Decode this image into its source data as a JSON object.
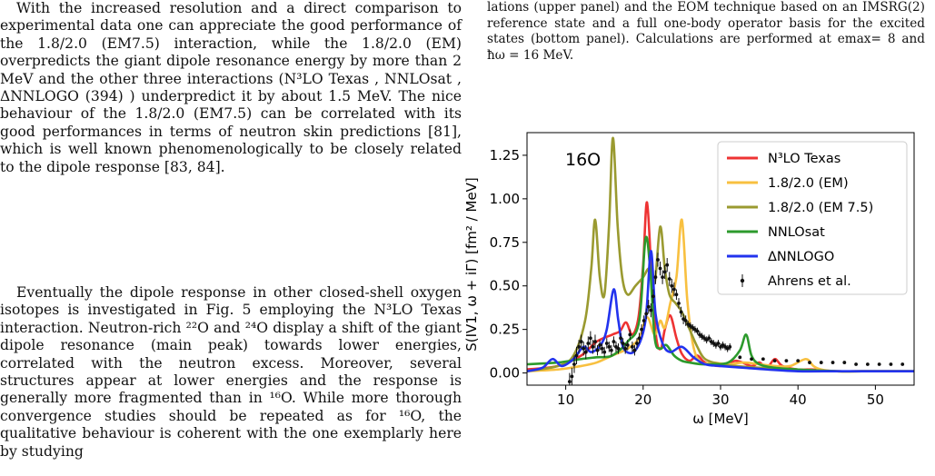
{
  "text": {
    "para1": "With the increased resolution and a direct comparison to experimental data one can appreciate the good performance of the 1.8/2.0 (EM7.5) interaction, while the 1.8/2.0 (EM) overpredicts the giant dipole resonance energy by more than 2 MeV and the other three interactions (N³LO Texas , NNLOsat , ΔNNLOGO (394) ) underpredict it by about 1.5 MeV. The nice behaviour of the 1.8/2.0 (EM7.5) can be correlated with its good performances in terms of neutron skin predictions [81], which is well known phenomenologically to be closely related to the dipole response [83, 84].",
    "para2": "Eventually the dipole response in other closed-shell oxygen isotopes is investigated in Fig. 5 employing the N³LO Texas interaction. Neutron-rich ²²O and ²⁴O display a shift of the giant dipole resonance (main peak) towards lower energies, correlated with the neutron excess. Moreover, several structures appear at lower energies and the response is generally more fragmented than in ¹⁶O. While more thorough convergence studies should be repeated as for ¹⁶O, the qualitative behaviour is coherent with the one exemplarly here by studying",
    "caption": "lations (upper panel) and the EOM technique based on an IMSRG(2) reference state and a full one-body operator basis for the excited states (bottom panel). Calculations are performed at emax= 8 and ħω = 16 MeV."
  },
  "colors": {
    "n3lo": "#ee3333",
    "em": "#f8c040",
    "em75": "#9a9a30",
    "nnlo": "#2c9a2c",
    "dnnlo": "#2233ee",
    "data": "#111111"
  },
  "chart_data": {
    "type": "line",
    "annotation": "16O",
    "xlabel": "ω   [MeV]",
    "ylabel": "S(IV1, ω + iΓ)   [fm² / MeV]",
    "xlim": [
      5,
      55
    ],
    "ylim": [
      -0.07,
      1.38
    ],
    "xticks": [
      10,
      20,
      30,
      40,
      50
    ],
    "yticks": [
      0.0,
      0.25,
      0.5,
      0.75,
      1.0,
      1.25
    ],
    "legend_position": "top-right",
    "grid": false,
    "series": [
      {
        "name": "N³LO Texas",
        "color_key": "n3lo",
        "x": [
          5,
          9,
          12,
          14,
          16,
          17,
          17.8,
          18.6,
          19.4,
          20,
          20.5,
          21.1,
          21.7,
          22.3,
          22.8,
          23.5,
          24.3,
          25,
          26,
          27,
          28,
          30,
          32,
          34,
          35,
          36,
          37,
          38,
          40,
          42,
          45,
          50,
          55
        ],
        "y": [
          0.02,
          0.04,
          0.1,
          0.18,
          0.22,
          0.24,
          0.29,
          0.22,
          0.32,
          0.62,
          0.98,
          0.55,
          0.2,
          0.14,
          0.25,
          0.33,
          0.2,
          0.11,
          0.07,
          0.1,
          0.06,
          0.04,
          0.07,
          0.04,
          0.06,
          0.03,
          0.08,
          0.04,
          0.02,
          0.02,
          0.01,
          0.01,
          0.01
        ]
      },
      {
        "name": "1.8/2.0 (EM)",
        "color_key": "em",
        "x": [
          5,
          9,
          12,
          14,
          16,
          18,
          19.5,
          20.5,
          21.5,
          22.2,
          22.8,
          23.5,
          24.3,
          25,
          25.7,
          26.5,
          27.5,
          29,
          31,
          33,
          35,
          37,
          39,
          41,
          42,
          43,
          45,
          50,
          55
        ],
        "y": [
          0.01,
          0.02,
          0.04,
          0.06,
          0.1,
          0.14,
          0.2,
          0.32,
          0.22,
          0.3,
          0.26,
          0.4,
          0.55,
          0.88,
          0.42,
          0.15,
          0.06,
          0.06,
          0.05,
          0.06,
          0.05,
          0.04,
          0.04,
          0.08,
          0.04,
          0.02,
          0.01,
          0.01,
          0.01
        ]
      },
      {
        "name": "1.8/2.0 (EM 7.5)",
        "color_key": "em75",
        "x": [
          5,
          9,
          11,
          12.5,
          13.3,
          13.8,
          14.4,
          15,
          15.6,
          16.1,
          16.7,
          17.3,
          18,
          19,
          20,
          20.8,
          21.5,
          22.2,
          22.8,
          23.4,
          24.2,
          25,
          26,
          27,
          28,
          30,
          32,
          35,
          40,
          45,
          50,
          55
        ],
        "y": [
          0.01,
          0.04,
          0.1,
          0.3,
          0.6,
          0.88,
          0.55,
          0.45,
          0.85,
          1.35,
          0.85,
          0.55,
          0.45,
          0.5,
          0.55,
          0.6,
          0.52,
          0.84,
          0.6,
          0.45,
          0.4,
          0.35,
          0.25,
          0.15,
          0.08,
          0.05,
          0.04,
          0.03,
          0.02,
          0.01,
          0.01,
          0.01
        ]
      },
      {
        "name": "NNLOsat",
        "color_key": "nnlo",
        "x": [
          5,
          9,
          12,
          14,
          16,
          18,
          19.5,
          20.3,
          20.9,
          21.5,
          22.2,
          23,
          24,
          25,
          26,
          27.5,
          29,
          31,
          32.5,
          33.3,
          34,
          35,
          37,
          40,
          45,
          50,
          55
        ],
        "y": [
          0.05,
          0.06,
          0.08,
          0.09,
          0.1,
          0.18,
          0.3,
          0.77,
          0.6,
          0.2,
          0.14,
          0.16,
          0.1,
          0.07,
          0.06,
          0.05,
          0.05,
          0.06,
          0.13,
          0.22,
          0.1,
          0.05,
          0.03,
          0.02,
          0.01,
          0.01,
          0.01
        ]
      },
      {
        "name": "ΔNNLOGO",
        "color_key": "dnnlo",
        "x": [
          5,
          7,
          8.3,
          9.5,
          11,
          12.3,
          13.3,
          14.5,
          15.3,
          16.2,
          16.8,
          17.5,
          19,
          20.3,
          21,
          21.6,
          22.5,
          23.5,
          25,
          26.5,
          28,
          30,
          33,
          36,
          40,
          45,
          50,
          55
        ],
        "y": [
          0.01,
          0.03,
          0.08,
          0.04,
          0.08,
          0.15,
          0.12,
          0.16,
          0.25,
          0.48,
          0.3,
          0.14,
          0.13,
          0.3,
          0.7,
          0.34,
          0.17,
          0.12,
          0.15,
          0.09,
          0.05,
          0.04,
          0.03,
          0.02,
          0.01,
          0.01,
          0.01,
          0.01
        ]
      },
      {
        "name": "Ahrens et al.",
        "color_key": "data",
        "style": "errorbar",
        "x": [
          10.5,
          10.8,
          11.1,
          11.4,
          11.7,
          12.0,
          12.3,
          12.6,
          12.9,
          13.2,
          13.5,
          13.8,
          14.1,
          14.4,
          14.7,
          15.0,
          15.3,
          15.6,
          15.9,
          16.2,
          16.5,
          16.8,
          17.1,
          17.4,
          17.7,
          18.0,
          18.3,
          18.6,
          18.9,
          19.2,
          19.5,
          19.8,
          20.1,
          20.4,
          20.7,
          21.0,
          21.3,
          21.6,
          21.9,
          22.2,
          22.5,
          22.8,
          23.1,
          23.4,
          23.7,
          24.0,
          24.3,
          24.6,
          24.9,
          25.2,
          25.5,
          25.8,
          26.1,
          26.4,
          26.7,
          27.0,
          27.3,
          27.6,
          27.9,
          28.2,
          28.5,
          28.8,
          29.1,
          29.4,
          29.7,
          30.0,
          30.3,
          30.6,
          30.9,
          31.2
        ],
        "y": [
          -0.05,
          -0.02,
          0.05,
          0.1,
          0.15,
          0.18,
          0.14,
          0.12,
          0.17,
          0.2,
          0.15,
          0.18,
          0.13,
          0.16,
          0.14,
          0.12,
          0.17,
          0.15,
          0.13,
          0.18,
          0.15,
          0.14,
          0.2,
          0.17,
          0.14,
          0.16,
          0.22,
          0.15,
          0.13,
          0.17,
          0.2,
          0.25,
          0.3,
          0.34,
          0.38,
          0.36,
          0.44,
          0.55,
          0.65,
          0.6,
          0.55,
          0.58,
          0.62,
          0.54,
          0.5,
          0.48,
          0.45,
          0.4,
          0.35,
          0.31,
          0.3,
          0.28,
          0.27,
          0.26,
          0.25,
          0.24,
          0.22,
          0.21,
          0.2,
          0.19,
          0.2,
          0.18,
          0.17,
          0.16,
          0.17,
          0.15,
          0.16,
          0.15,
          0.14,
          0.15
        ],
        "err": [
          0.05,
          0.05,
          0.05,
          0.05,
          0.04,
          0.04,
          0.04,
          0.04,
          0.04,
          0.04,
          0.04,
          0.04,
          0.03,
          0.03,
          0.03,
          0.03,
          0.03,
          0.03,
          0.03,
          0.03,
          0.03,
          0.03,
          0.03,
          0.03,
          0.03,
          0.03,
          0.03,
          0.03,
          0.03,
          0.03,
          0.03,
          0.03,
          0.03,
          0.03,
          0.04,
          0.04,
          0.04,
          0.04,
          0.04,
          0.04,
          0.04,
          0.04,
          0.04,
          0.04,
          0.04,
          0.04,
          0.03,
          0.03,
          0.03,
          0.03,
          0.03,
          0.02,
          0.02,
          0.02,
          0.02,
          0.02,
          0.02,
          0.02,
          0.02,
          0.02,
          0.02,
          0.02,
          0.02,
          0.02,
          0.02,
          0.02,
          0.02,
          0.02,
          0.02,
          0.02
        ],
        "tail_x": [
          32.5,
          34,
          35.5,
          37,
          38.5,
          40,
          41.5,
          43,
          44.5,
          46,
          47.5,
          49,
          50.5,
          52,
          53.5
        ],
        "tail_y": [
          0.09,
          0.08,
          0.08,
          0.07,
          0.07,
          0.07,
          0.06,
          0.06,
          0.06,
          0.06,
          0.05,
          0.05,
          0.05,
          0.05,
          0.05
        ]
      }
    ]
  }
}
